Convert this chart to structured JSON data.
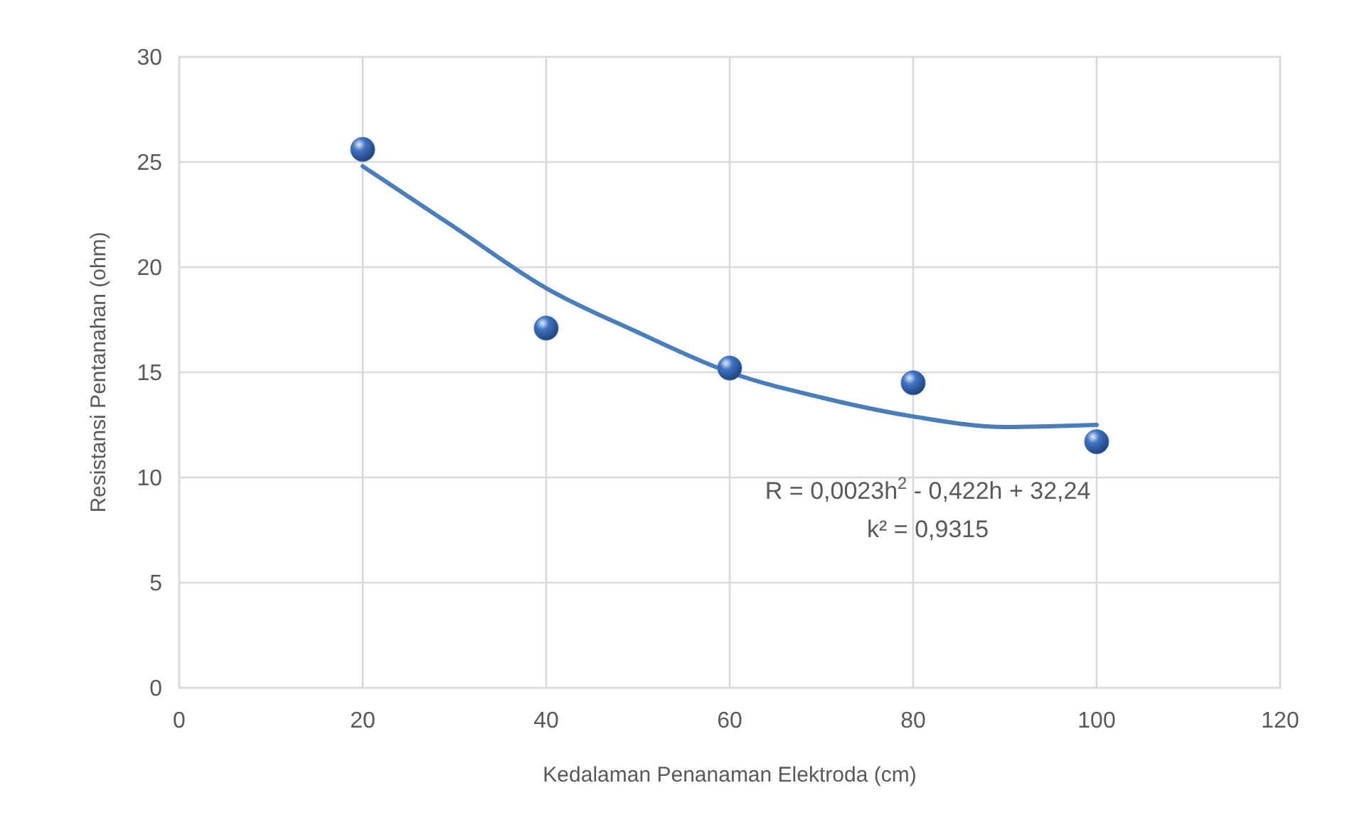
{
  "chart_data": {
    "type": "scatter",
    "xlabel": "Kedalaman Penanaman Elektroda (cm)",
    "ylabel": "Resistansi Pentanahan (ohm)",
    "xlim": [
      0,
      120
    ],
    "xticks": [
      0,
      20,
      40,
      60,
      80,
      100,
      120
    ],
    "ylim": [
      0,
      30
    ],
    "yticks": [
      0,
      5,
      10,
      15,
      20,
      25,
      30
    ],
    "grid": true,
    "series": [
      {
        "color": "#3f74c4",
        "marker": "circle",
        "x": [
          20,
          40,
          60,
          80,
          100
        ],
        "values": [
          25.6,
          17.1,
          15.2,
          14.5,
          11.7
        ]
      },
      {
        "type": "line",
        "color": "#4a7ebb",
        "marker": "none",
        "line_style": "solid",
        "x": [
          20,
          30,
          40,
          50,
          60,
          70,
          80,
          90,
          100
        ],
        "values": [
          24.8,
          21.9,
          19.0,
          16.9,
          15.0,
          13.8,
          12.9,
          12.4,
          12.5
        ]
      }
    ],
    "annotations": [
      "R = 0,0023h$^{2}$ - 0,422h + 32,24",
      "k² = 0,9315"
    ]
  }
}
